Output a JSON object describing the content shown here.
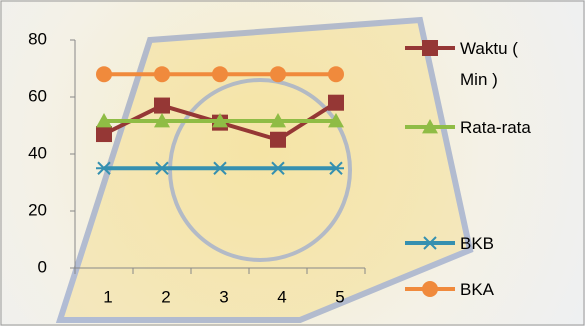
{
  "chart_data": {
    "type": "line",
    "categories": [
      "1",
      "2",
      "3",
      "4",
      "5"
    ],
    "series": [
      {
        "name": "Waktu ( Min )",
        "color": "#953735",
        "marker": "square",
        "values": [
          47,
          57,
          51,
          45,
          58
        ]
      },
      {
        "name": "Rata-rata",
        "color": "#8fbc45",
        "marker": "triangle",
        "values": [
          51.6,
          51.6,
          51.6,
          51.6,
          51.6
        ]
      },
      {
        "name": "BKB",
        "color": "#3590b0",
        "marker": "asterisk",
        "values": [
          35,
          35,
          35,
          35,
          35
        ]
      },
      {
        "name": "BKA",
        "color": "#f08a3c",
        "marker": "circle",
        "values": [
          68,
          68,
          68,
          68,
          68
        ]
      }
    ],
    "ylim": [
      0,
      80
    ],
    "yticks": [
      0,
      20,
      40,
      60,
      80
    ],
    "grid": false
  }
}
